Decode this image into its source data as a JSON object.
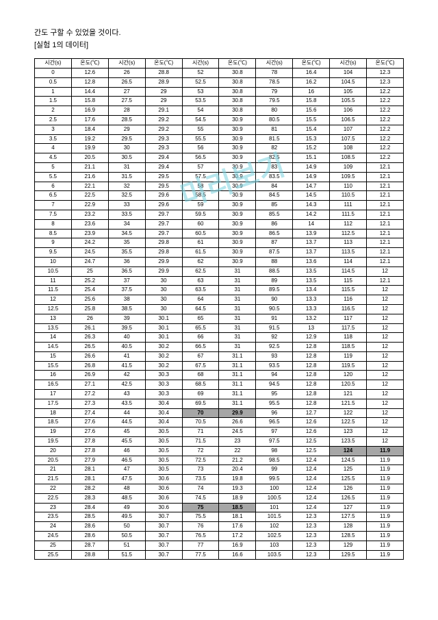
{
  "intro_line1": "간도 구할 수 있었을 것이다.",
  "intro_line2": "[실험 1의 데이터]",
  "watermark_text": "미리보기",
  "headers": [
    "시간(s)",
    "온도(℃)",
    "시간(s)",
    "온도(℃)",
    "시간(s)",
    "온도(℃)",
    "시간(s)",
    "온도(℃)",
    "시간(s)",
    "온도(℃)"
  ],
  "highlights": {
    "70": true,
    "29.9_at_70": true,
    "75": true,
    "18.5_at_75": true,
    "124": true,
    "11.9_at_124": true
  },
  "rows": [
    [
      "0",
      "12.6",
      "26",
      "28.8",
      "52",
      "30.8",
      "78",
      "16.4",
      "104",
      "12.3"
    ],
    [
      "0.5",
      "12.8",
      "26.5",
      "28.9",
      "52.5",
      "30.8",
      "78.5",
      "16.2",
      "104.5",
      "12.3"
    ],
    [
      "1",
      "14.4",
      "27",
      "29",
      "53",
      "30.8",
      "79",
      "16",
      "105",
      "12.2"
    ],
    [
      "1.5",
      "15.8",
      "27.5",
      "29",
      "53.5",
      "30.8",
      "79.5",
      "15.8",
      "105.5",
      "12.2"
    ],
    [
      "2",
      "16.9",
      "28",
      "29.1",
      "54",
      "30.8",
      "80",
      "15.6",
      "106",
      "12.2"
    ],
    [
      "2.5",
      "17.6",
      "28.5",
      "29.2",
      "54.5",
      "30.9",
      "80.5",
      "15.5",
      "106.5",
      "12.2"
    ],
    [
      "3",
      "18.4",
      "29",
      "29.2",
      "55",
      "30.9",
      "81",
      "15.4",
      "107",
      "12.2"
    ],
    [
      "3.5",
      "19.2",
      "29.5",
      "29.3",
      "55.5",
      "30.9",
      "81.5",
      "15.3",
      "107.5",
      "12.2"
    ],
    [
      "4",
      "19.9",
      "30",
      "29.3",
      "56",
      "30.9",
      "82",
      "15.2",
      "108",
      "12.2"
    ],
    [
      "4.5",
      "20.5",
      "30.5",
      "29.4",
      "56.5",
      "30.9",
      "82.5",
      "15.1",
      "108.5",
      "12.2"
    ],
    [
      "5",
      "21.1",
      "31",
      "29.4",
      "57",
      "30.9",
      "83",
      "14.9",
      "109",
      "12.1"
    ],
    [
      "5.5",
      "21.6",
      "31.5",
      "29.5",
      "57.5",
      "30.9",
      "83.5",
      "14.9",
      "109.5",
      "12.1"
    ],
    [
      "6",
      "22.1",
      "32",
      "29.5",
      "58",
      "30.9",
      "84",
      "14.7",
      "110",
      "12.1"
    ],
    [
      "6.5",
      "22.5",
      "32.5",
      "29.6",
      "58.5",
      "30.9",
      "84.5",
      "14.5",
      "110.5",
      "12.1"
    ],
    [
      "7",
      "22.9",
      "33",
      "29.6",
      "59",
      "30.9",
      "85",
      "14.3",
      "111",
      "12.1"
    ],
    [
      "7.5",
      "23.2",
      "33.5",
      "29.7",
      "59.5",
      "30.9",
      "85.5",
      "14.2",
      "111.5",
      "12.1"
    ],
    [
      "8",
      "23.6",
      "34",
      "29.7",
      "60",
      "30.9",
      "86",
      "14",
      "112",
      "12.1"
    ],
    [
      "8.5",
      "23.9",
      "34.5",
      "29.7",
      "60.5",
      "30.9",
      "86.5",
      "13.9",
      "112.5",
      "12.1"
    ],
    [
      "9",
      "24.2",
      "35",
      "29.8",
      "61",
      "30.9",
      "87",
      "13.7",
      "113",
      "12.1"
    ],
    [
      "9.5",
      "24.5",
      "35.5",
      "29.8",
      "61.5",
      "30.9",
      "87.5",
      "13.7",
      "113.5",
      "12.1"
    ],
    [
      "10",
      "24.7",
      "36",
      "29.9",
      "62",
      "30.9",
      "88",
      "13.6",
      "114",
      "12.1"
    ],
    [
      "10.5",
      "25",
      "36.5",
      "29.9",
      "62.5",
      "31",
      "88.5",
      "13.5",
      "114.5",
      "12"
    ],
    [
      "11",
      "25.2",
      "37",
      "30",
      "63",
      "31",
      "89",
      "13.5",
      "115",
      "12.1"
    ],
    [
      "11.5",
      "25.4",
      "37.5",
      "30",
      "63.5",
      "31",
      "89.5",
      "13.4",
      "115.5",
      "12"
    ],
    [
      "12",
      "25.6",
      "38",
      "30",
      "64",
      "31",
      "90",
      "13.3",
      "116",
      "12"
    ],
    [
      "12.5",
      "25.8",
      "38.5",
      "30",
      "64.5",
      "31",
      "90.5",
      "13.3",
      "116.5",
      "12"
    ],
    [
      "13",
      "26",
      "39",
      "30.1",
      "65",
      "31",
      "91",
      "13.2",
      "117",
      "12"
    ],
    [
      "13.5",
      "26.1",
      "39.5",
      "30.1",
      "65.5",
      "31",
      "91.5",
      "13",
      "117.5",
      "12"
    ],
    [
      "14",
      "26.3",
      "40",
      "30.1",
      "66",
      "31",
      "92",
      "12.9",
      "118",
      "12"
    ],
    [
      "14.5",
      "26.5",
      "40.5",
      "30.2",
      "66.5",
      "31",
      "92.5",
      "12.8",
      "118.5",
      "12"
    ],
    [
      "15",
      "26.6",
      "41",
      "30.2",
      "67",
      "31.1",
      "93",
      "12.8",
      "119",
      "12"
    ],
    [
      "15.5",
      "26.8",
      "41.5",
      "30.2",
      "67.5",
      "31.1",
      "93.5",
      "12.8",
      "119.5",
      "12"
    ],
    [
      "16",
      "26.9",
      "42",
      "30.3",
      "68",
      "31.1",
      "94",
      "12.8",
      "120",
      "12"
    ],
    [
      "16.5",
      "27.1",
      "42.5",
      "30.3",
      "68.5",
      "31.1",
      "94.5",
      "12.8",
      "120.5",
      "12"
    ],
    [
      "17",
      "27.2",
      "43",
      "30.3",
      "69",
      "31.1",
      "95",
      "12.8",
      "121",
      "12"
    ],
    [
      "17.5",
      "27.3",
      "43.5",
      "30.4",
      "69.5",
      "31.1",
      "95.5",
      "12.8",
      "121.5",
      "12"
    ],
    [
      "18",
      "27.4",
      "44",
      "30.4",
      "70",
      "29.9",
      "96",
      "12.7",
      "122",
      "12"
    ],
    [
      "18.5",
      "27.6",
      "44.5",
      "30.4",
      "70.5",
      "26.6",
      "96.5",
      "12.6",
      "122.5",
      "12"
    ],
    [
      "19",
      "27.6",
      "45",
      "30.5",
      "71",
      "24.5",
      "97",
      "12.6",
      "123",
      "12"
    ],
    [
      "19.5",
      "27.8",
      "45.5",
      "30.5",
      "71.5",
      "23",
      "97.5",
      "12.5",
      "123.5",
      "12"
    ],
    [
      "20",
      "27.8",
      "46",
      "30.5",
      "72",
      "22",
      "98",
      "12.5",
      "124",
      "11.9"
    ],
    [
      "20.5",
      "27.9",
      "46.5",
      "30.5",
      "72.5",
      "21.2",
      "98.5",
      "12.4",
      "124.5",
      "11.9"
    ],
    [
      "21",
      "28.1",
      "47",
      "30.5",
      "73",
      "20.4",
      "99",
      "12.4",
      "125",
      "11.9"
    ],
    [
      "21.5",
      "28.1",
      "47.5",
      "30.6",
      "73.5",
      "19.8",
      "99.5",
      "12.4",
      "125.5",
      "11.9"
    ],
    [
      "22",
      "28.2",
      "48",
      "30.6",
      "74",
      "19.3",
      "100",
      "12.4",
      "126",
      "11.9"
    ],
    [
      "22.5",
      "28.3",
      "48.5",
      "30.6",
      "74.5",
      "18.9",
      "100.5",
      "12.4",
      "126.5",
      "11.9"
    ],
    [
      "23",
      "28.4",
      "49",
      "30.6",
      "75",
      "18.5",
      "101",
      "12.4",
      "127",
      "11.9"
    ],
    [
      "23.5",
      "28.5",
      "49.5",
      "30.7",
      "75.5",
      "18.1",
      "101.5",
      "12.3",
      "127.5",
      "11.9"
    ],
    [
      "24",
      "28.6",
      "50",
      "30.7",
      "76",
      "17.6",
      "102",
      "12.3",
      "128",
      "11.9"
    ],
    [
      "24.5",
      "28.6",
      "50.5",
      "30.7",
      "76.5",
      "17.2",
      "102.5",
      "12.3",
      "128.5",
      "11.9"
    ],
    [
      "25",
      "28.7",
      "51",
      "30.7",
      "77",
      "16.9",
      "103",
      "12.3",
      "129",
      "11.9"
    ],
    [
      "25.5",
      "28.8",
      "51.5",
      "30.7",
      "77.5",
      "16.6",
      "103.5",
      "12.3",
      "129.5",
      "11.9"
    ]
  ],
  "highlight_cells": [
    {
      "row": 36,
      "col": 4
    },
    {
      "row": 36,
      "col": 5
    },
    {
      "row": 46,
      "col": 4
    },
    {
      "row": 46,
      "col": 5
    },
    {
      "row": 40,
      "col": 8
    },
    {
      "row": 40,
      "col": 9
    }
  ]
}
